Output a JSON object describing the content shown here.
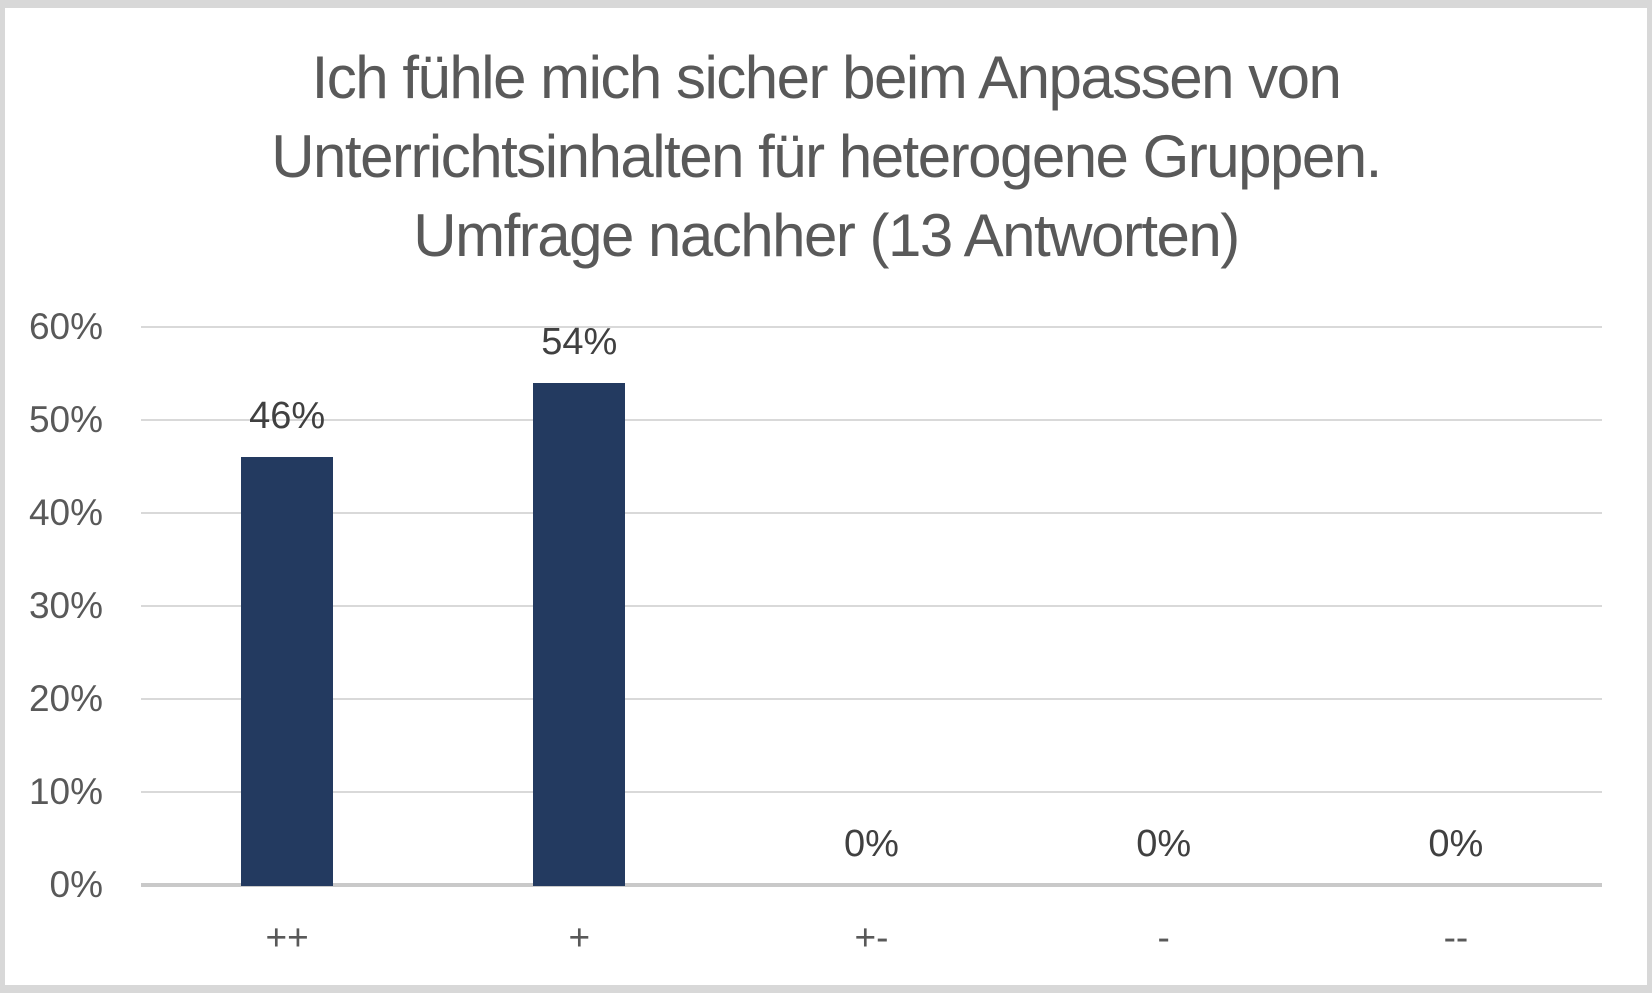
{
  "chart_data": {
    "type": "bar",
    "title": "Ich fühle mich sicher beim Anpassen von Unterrichtsinhalten für heterogene Gruppen. Umfrage nachher (13 Antworten)",
    "title_lines": [
      "Ich fühle mich sicher beim Anpassen von",
      "Unterrichtsinhalten für heterogene Gruppen.",
      "Umfrage nachher (13 Antworten)"
    ],
    "categories": [
      "++",
      "+",
      "+-",
      "-",
      "--"
    ],
    "values": [
      46,
      54,
      0,
      0,
      0
    ],
    "value_labels": [
      "46%",
      "54%",
      "0%",
      "0%",
      "0%"
    ],
    "yticks": [
      {
        "value": 0,
        "label": "0%"
      },
      {
        "value": 10,
        "label": "10%"
      },
      {
        "value": 20,
        "label": "20%"
      },
      {
        "value": 30,
        "label": "30%"
      },
      {
        "value": 40,
        "label": "40%"
      },
      {
        "value": 50,
        "label": "50%"
      },
      {
        "value": 60,
        "label": "60%"
      }
    ],
    "ylim": [
      0,
      60
    ],
    "xlabel": "",
    "ylabel": "",
    "grid": true,
    "legend_position": "none",
    "colors": {
      "bar": "#233A60",
      "title_text": "#595959",
      "axis_text": "#595959",
      "data_label_text": "#404040",
      "gridline": "#D9D9D9",
      "axis_line": "#C9C9C9",
      "frame": "#D8D8D8",
      "background": "#FFFFFF"
    }
  }
}
